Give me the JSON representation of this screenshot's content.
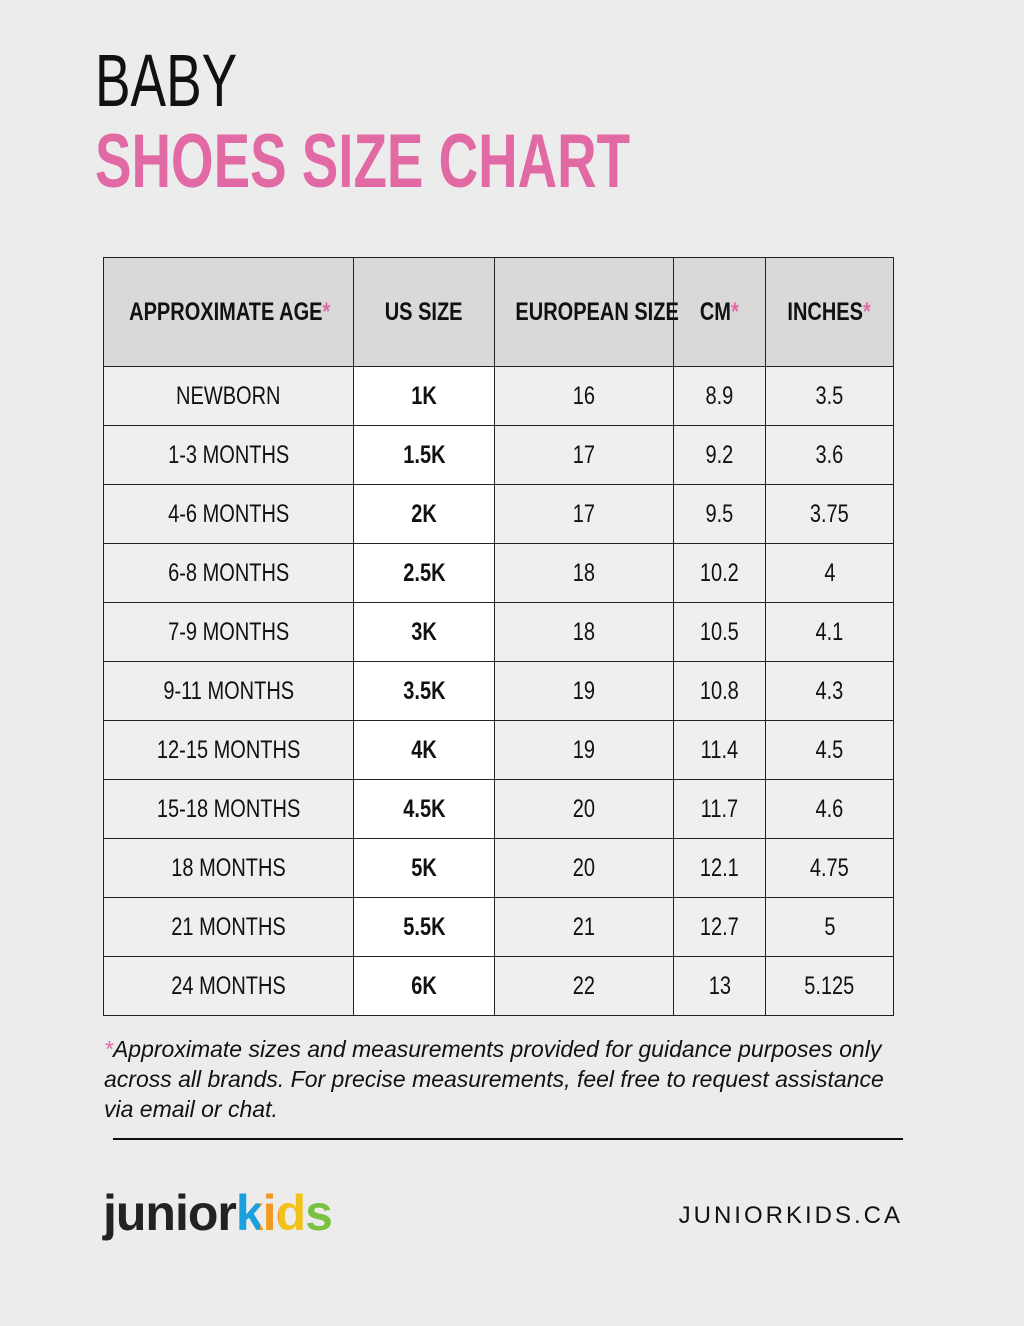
{
  "header": {
    "line1": "BABY",
    "line2": "SHOES SIZE CHART"
  },
  "table": {
    "columns": [
      {
        "text": "APPROXIMATE AGE",
        "mark": "*"
      },
      {
        "text": "US SIZE"
      },
      {
        "text": "EUROPEAN SIZE"
      },
      {
        "text": "CM",
        "mark": "*"
      },
      {
        "text": "INCHES",
        "mark": "*"
      }
    ],
    "rows": [
      [
        "NEWBORN",
        "1K",
        "16",
        "8.9",
        "3.5"
      ],
      [
        "1-3 MONTHS",
        "1.5K",
        "17",
        "9.2",
        "3.6"
      ],
      [
        "4-6 MONTHS",
        "2K",
        "17",
        "9.5",
        "3.75"
      ],
      [
        "6-8 MONTHS",
        "2.5K",
        "18",
        "10.2",
        "4"
      ],
      [
        "7-9 MONTHS",
        "3K",
        "18",
        "10.5",
        "4.1"
      ],
      [
        "9-11 MONTHS",
        "3.5K",
        "19",
        "10.8",
        "4.3"
      ],
      [
        "12-15 MONTHS",
        "4K",
        "19",
        "11.4",
        "4.5"
      ],
      [
        "15-18 MONTHS",
        "4.5K",
        "20",
        "11.7",
        "4.6"
      ],
      [
        "18 MONTHS",
        "5K",
        "20",
        "12.1",
        "4.75"
      ],
      [
        "21 MONTHS",
        "5.5K",
        "21",
        "12.7",
        "5"
      ],
      [
        "24 MONTHS",
        "6K",
        "22",
        "13",
        "5.125"
      ]
    ]
  },
  "footnote": {
    "mark": "*",
    "text": "Approximate sizes and measurements provided for guidance purposes only across all brands. For precise measurements, feel free to request assistance via email or chat."
  },
  "footer": {
    "logo_dark": "junior",
    "logo_color": "kids",
    "website": "JUNIORKIDS.CA"
  }
}
